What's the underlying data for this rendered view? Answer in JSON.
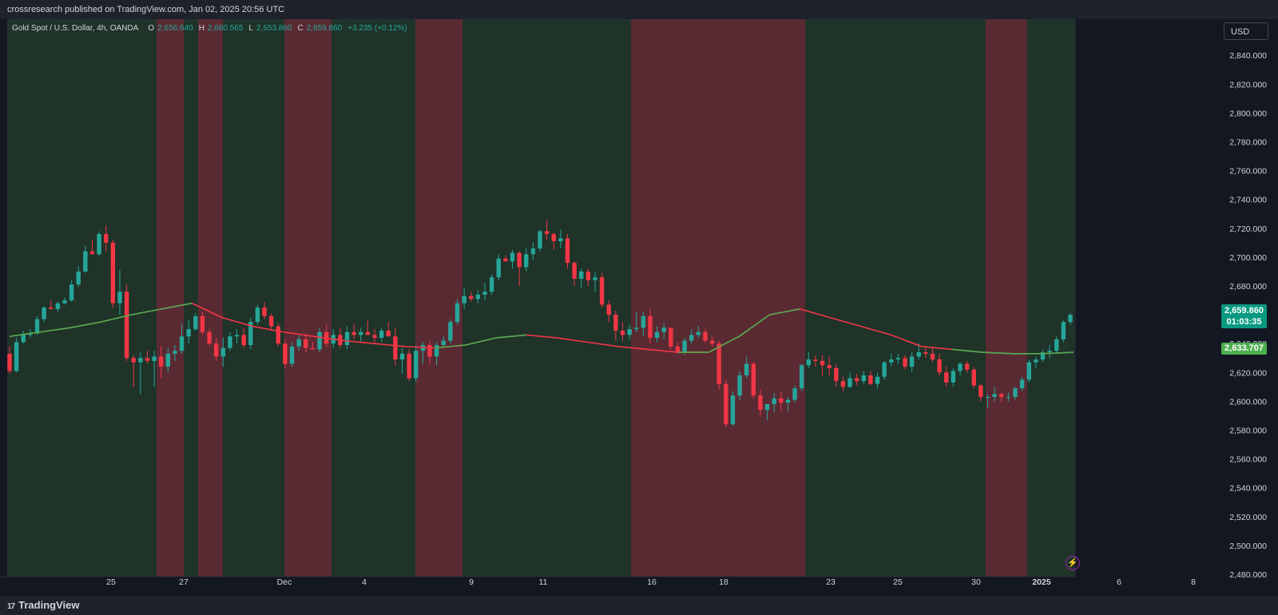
{
  "header": {
    "publish": "crossresearch published on TradingView.com, Jan 02, 2025 20:56 UTC"
  },
  "legend": {
    "symbol": "Gold Spot / U.S. Dollar, 4h, OANDA",
    "o_label": "O",
    "o": "2,656.640",
    "h_label": "H",
    "h": "2,660.565",
    "l_label": "L",
    "l": "2,653.860",
    "c_label": "C",
    "c": "2,659.860",
    "change": "+3.235 (+0.12%)"
  },
  "currency_button": "USD",
  "last_price_tag": {
    "price": "2,659.860",
    "countdown": "01:03:35"
  },
  "ma_price_tag": "2,633.707",
  "footer": {
    "brand": "TradingView",
    "logo_mark": "17"
  },
  "icons": {
    "replay": "lightning-bolt-icon"
  },
  "colors": {
    "up": "#26a69a",
    "down": "#f23645",
    "bull_zone": "#1f3329",
    "bear_zone": "#5a2a33",
    "ma_up": "#4caf50",
    "ma_down": "#f23645",
    "bg": "#131722",
    "axis_text": "#d1d4dc"
  },
  "chart_data": {
    "type": "candlestick",
    "ylim": [
      2480,
      2850
    ],
    "y_ticks": [
      "2,480.000",
      "2,500.000",
      "2,520.000",
      "2,540.000",
      "2,560.000",
      "2,580.000",
      "2,600.000",
      "2,620.000",
      "2,640.000",
      "2,660.000",
      "2,680.000",
      "2,700.000",
      "2,720.000",
      "2,740.000",
      "2,760.000",
      "2,780.000",
      "2,800.000",
      "2,820.000",
      "2,840.000"
    ],
    "x_ticks": [
      "25",
      "27",
      "Dec",
      "4",
      "9",
      "11",
      "16",
      "18",
      "23",
      "25",
      "30",
      "2025",
      "6",
      "8"
    ],
    "x_tick_bold": [
      false,
      false,
      false,
      false,
      false,
      false,
      false,
      false,
      false,
      false,
      false,
      true,
      false,
      false
    ],
    "bear_zones": [
      [
        "Nov 26",
        "Nov 27"
      ],
      [
        "Nov 28",
        "Nov 29"
      ],
      [
        "Dec 2",
        "Dec 3"
      ],
      [
        "Dec 6",
        "Dec 7"
      ],
      [
        "Dec 7",
        "Dec 9"
      ],
      [
        "Dec 13",
        "Dec 20"
      ],
      [
        "Dec 30",
        "Jan 1"
      ]
    ],
    "candles": [
      [
        2633,
        2638,
        2619,
        2621
      ],
      [
        2621,
        2644,
        2620,
        2641
      ],
      [
        2641,
        2649,
        2640,
        2646
      ],
      [
        2646,
        2650,
        2644,
        2647
      ],
      [
        2647,
        2659,
        2646,
        2657
      ],
      [
        2657,
        2666,
        2655,
        2665
      ],
      [
        2665,
        2670,
        2664,
        2664
      ],
      [
        2664,
        2669,
        2662,
        2668
      ],
      [
        2668,
        2672,
        2667,
        2670
      ],
      [
        2670,
        2684,
        2669,
        2681
      ],
      [
        2681,
        2694,
        2679,
        2690
      ],
      [
        2690,
        2708,
        2689,
        2704
      ],
      [
        2704,
        2712,
        2703,
        2702
      ],
      [
        2702,
        2718,
        2701,
        2716
      ],
      [
        2716,
        2722,
        2704,
        2710
      ],
      [
        2710,
        2712,
        2665,
        2668
      ],
      [
        2668,
        2691,
        2660,
        2676
      ],
      [
        2676,
        2681,
        2628,
        2630
      ],
      [
        2630,
        2632,
        2610,
        2627
      ],
      [
        2627,
        2634,
        2605,
        2630
      ],
      [
        2630,
        2635,
        2626,
        2628
      ],
      [
        2628,
        2635,
        2610,
        2631
      ],
      [
        2631,
        2638,
        2616,
        2624
      ],
      [
        2624,
        2637,
        2620,
        2633
      ],
      [
        2633,
        2639,
        2628,
        2635
      ],
      [
        2635,
        2654,
        2633,
        2645
      ],
      [
        2645,
        2656,
        2640,
        2650
      ],
      [
        2650,
        2661,
        2649,
        2659
      ],
      [
        2659,
        2662,
        2646,
        2648
      ],
      [
        2648,
        2650,
        2639,
        2640
      ],
      [
        2640,
        2644,
        2628,
        2631
      ],
      [
        2631,
        2644,
        2624,
        2637
      ],
      [
        2637,
        2648,
        2635,
        2645
      ],
      [
        2645,
        2650,
        2640,
        2646
      ],
      [
        2646,
        2651,
        2637,
        2639
      ],
      [
        2639,
        2658,
        2636,
        2655
      ],
      [
        2655,
        2667,
        2653,
        2665
      ],
      [
        2665,
        2669,
        2657,
        2659
      ],
      [
        2659,
        2661,
        2649,
        2652
      ],
      [
        2652,
        2654,
        2638,
        2640
      ],
      [
        2640,
        2643,
        2623,
        2626
      ],
      [
        2626,
        2641,
        2624,
        2638
      ],
      [
        2638,
        2646,
        2635,
        2643
      ],
      [
        2643,
        2647,
        2634,
        2637
      ],
      [
        2637,
        2641,
        2636,
        2636
      ],
      [
        2636,
        2651,
        2634,
        2648
      ],
      [
        2648,
        2653,
        2638,
        2640
      ],
      [
        2640,
        2650,
        2637,
        2646
      ],
      [
        2646,
        2651,
        2637,
        2639
      ],
      [
        2639,
        2652,
        2636,
        2648
      ],
      [
        2648,
        2654,
        2643,
        2646
      ],
      [
        2646,
        2651,
        2641,
        2648
      ],
      [
        2648,
        2656,
        2646,
        2646
      ],
      [
        2646,
        2650,
        2640,
        2644
      ],
      [
        2644,
        2651,
        2641,
        2649
      ],
      [
        2649,
        2655,
        2645,
        2645
      ],
      [
        2645,
        2651,
        2625,
        2629
      ],
      [
        2629,
        2637,
        2619,
        2633
      ],
      [
        2633,
        2636,
        2614,
        2616
      ],
      [
        2616,
        2639,
        2613,
        2635
      ],
      [
        2635,
        2641,
        2626,
        2639
      ],
      [
        2639,
        2642,
        2626,
        2631
      ],
      [
        2631,
        2641,
        2625,
        2639
      ],
      [
        2639,
        2645,
        2637,
        2642
      ],
      [
        2642,
        2657,
        2640,
        2655
      ],
      [
        2655,
        2671,
        2653,
        2668
      ],
      [
        2668,
        2679,
        2664,
        2673
      ],
      [
        2673,
        2676,
        2669,
        2671
      ],
      [
        2671,
        2677,
        2668,
        2674
      ],
      [
        2674,
        2682,
        2670,
        2676
      ],
      [
        2676,
        2688,
        2674,
        2686
      ],
      [
        2686,
        2702,
        2684,
        2699
      ],
      [
        2699,
        2701,
        2697,
        2697
      ],
      [
        2697,
        2705,
        2692,
        2703
      ],
      [
        2703,
        2704,
        2680,
        2693
      ],
      [
        2693,
        2706,
        2690,
        2702
      ],
      [
        2702,
        2710,
        2698,
        2706
      ],
      [
        2706,
        2719,
        2704,
        2718
      ],
      [
        2718,
        2726,
        2712,
        2716
      ],
      [
        2716,
        2717,
        2705,
        2711
      ],
      [
        2711,
        2719,
        2706,
        2713
      ],
      [
        2713,
        2716,
        2692,
        2696
      ],
      [
        2696,
        2697,
        2680,
        2685
      ],
      [
        2685,
        2692,
        2679,
        2690
      ],
      [
        2690,
        2692,
        2680,
        2684
      ],
      [
        2684,
        2690,
        2676,
        2686
      ],
      [
        2686,
        2689,
        2665,
        2667
      ],
      [
        2667,
        2670,
        2655,
        2660
      ],
      [
        2660,
        2663,
        2642,
        2649
      ],
      [
        2649,
        2655,
        2642,
        2646
      ],
      [
        2646,
        2653,
        2643,
        2650
      ],
      [
        2650,
        2662,
        2648,
        2651
      ],
      [
        2651,
        2662,
        2645,
        2659
      ],
      [
        2659,
        2664,
        2640,
        2644
      ],
      [
        2644,
        2652,
        2641,
        2648
      ],
      [
        2648,
        2654,
        2643,
        2651
      ],
      [
        2651,
        2651,
        2636,
        2638
      ],
      [
        2638,
        2641,
        2633,
        2634
      ],
      [
        2634,
        2644,
        2632,
        2642
      ],
      [
        2642,
        2650,
        2640,
        2646
      ],
      [
        2646,
        2652,
        2644,
        2648
      ],
      [
        2648,
        2650,
        2641,
        2642
      ],
      [
        2642,
        2645,
        2638,
        2640
      ],
      [
        2640,
        2642,
        2608,
        2612
      ],
      [
        2612,
        2615,
        2582,
        2584
      ],
      [
        2584,
        2607,
        2583,
        2604
      ],
      [
        2604,
        2621,
        2601,
        2618
      ],
      [
        2618,
        2631,
        2616,
        2626
      ],
      [
        2626,
        2627,
        2602,
        2604
      ],
      [
        2604,
        2608,
        2590,
        2594
      ],
      [
        2594,
        2598,
        2587,
        2598
      ],
      [
        2598,
        2606,
        2592,
        2602
      ],
      [
        2602,
        2607,
        2593,
        2599
      ],
      [
        2599,
        2603,
        2593,
        2601
      ],
      [
        2601,
        2611,
        2599,
        2609
      ],
      [
        2609,
        2626,
        2607,
        2625
      ],
      [
        2625,
        2634,
        2623,
        2629
      ],
      [
        2629,
        2632,
        2624,
        2628
      ],
      [
        2628,
        2632,
        2618,
        2625
      ],
      [
        2625,
        2631,
        2618,
        2623
      ],
      [
        2623,
        2626,
        2610,
        2614
      ],
      [
        2614,
        2617,
        2607,
        2610
      ],
      [
        2610,
        2620,
        2609,
        2616
      ],
      [
        2616,
        2619,
        2611,
        2614
      ],
      [
        2614,
        2621,
        2612,
        2618
      ],
      [
        2618,
        2621,
        2611,
        2612
      ],
      [
        2612,
        2620,
        2609,
        2617
      ],
      [
        2617,
        2628,
        2615,
        2627
      ],
      [
        2627,
        2633,
        2624,
        2629
      ],
      [
        2629,
        2633,
        2626,
        2630
      ],
      [
        2630,
        2632,
        2622,
        2624
      ],
      [
        2624,
        2634,
        2620,
        2631
      ],
      [
        2631,
        2640,
        2629,
        2634
      ],
      [
        2634,
        2637,
        2630,
        2633
      ],
      [
        2633,
        2637,
        2627,
        2629
      ],
      [
        2629,
        2633,
        2618,
        2620
      ],
      [
        2620,
        2624,
        2610,
        2613
      ],
      [
        2613,
        2623,
        2610,
        2621
      ],
      [
        2621,
        2627,
        2618,
        2626
      ],
      [
        2626,
        2628,
        2620,
        2622
      ],
      [
        2622,
        2624,
        2609,
        2611
      ],
      [
        2611,
        2612,
        2600,
        2603
      ],
      [
        2603,
        2605,
        2595,
        2603
      ],
      [
        2603,
        2610,
        2600,
        2605
      ],
      [
        2605,
        2606,
        2599,
        2603
      ],
      [
        2603,
        2606,
        2600,
        2603
      ],
      [
        2603,
        2610,
        2601,
        2609
      ],
      [
        2609,
        2617,
        2607,
        2615
      ],
      [
        2615,
        2629,
        2613,
        2627
      ],
      [
        2627,
        2631,
        2623,
        2629
      ],
      [
        2629,
        2636,
        2627,
        2634
      ],
      [
        2634,
        2639,
        2630,
        2635
      ],
      [
        2635,
        2645,
        2633,
        2643
      ],
      [
        2643,
        2656,
        2641,
        2655
      ],
      [
        2655,
        2661,
        2653,
        2660
      ]
    ],
    "ma": [
      2645,
      2648,
      2651,
      2655,
      2660,
      2664,
      2668,
      2658,
      2652,
      2648,
      2645,
      2642,
      2640,
      2638,
      2637,
      2639,
      2644,
      2646,
      2644,
      2641,
      2638,
      2636,
      2634,
      2634,
      2645,
      2660,
      2664,
      2658,
      2652,
      2646,
      2638,
      2636,
      2634,
      2633,
      2633,
      2634
    ]
  }
}
